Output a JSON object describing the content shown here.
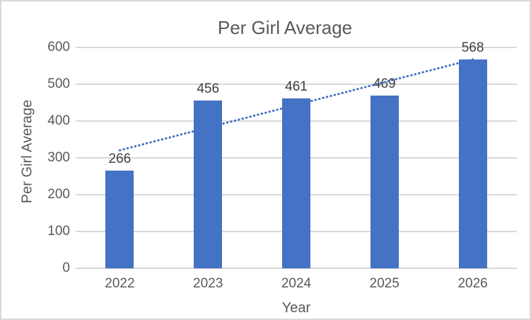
{
  "chart": {
    "title": "Per Girl Average",
    "y_axis_title": "Per Girl Average",
    "x_axis_title": "Year"
  },
  "chart_data": {
    "type": "bar",
    "title": "Per Girl Average",
    "xlabel": "Year",
    "ylabel": "Per Girl Average",
    "categories": [
      "2022",
      "2023",
      "2024",
      "2025",
      "2026"
    ],
    "values": [
      266,
      456,
      461,
      469,
      568
    ],
    "data_labels": [
      "266",
      "456",
      "461",
      "469",
      "568"
    ],
    "ylim": [
      0,
      600
    ],
    "yticks": [
      0,
      100,
      200,
      300,
      400,
      500,
      600
    ],
    "grid": true,
    "legend": "none",
    "trendline": {
      "type": "linear",
      "style": "dotted"
    },
    "colors": {
      "bar": "#4472c4",
      "trendline": "#4472c4",
      "gridline": "#d9d9d9",
      "title_text": "#595959",
      "tick_text": "#595959",
      "data_label_text": "#404040",
      "chart_border": "#d9d9d9",
      "background": "#ffffff"
    }
  }
}
